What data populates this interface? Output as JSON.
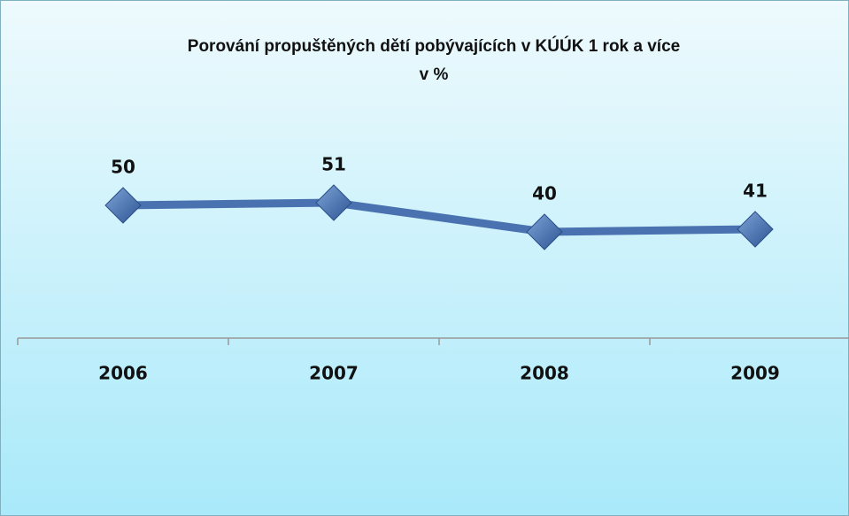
{
  "chart_data": {
    "type": "line",
    "title": [
      "Porování propuštěných dětí pobývajících v KÚÚK 1 rok a více",
      "v %"
    ],
    "categories": [
      "2006",
      "2007",
      "2008",
      "2009"
    ],
    "series": [
      {
        "name": "v %",
        "color": "#4a72b0",
        "values": [
          50,
          51,
          40,
          41
        ]
      }
    ],
    "ylim": [
      0,
      100
    ]
  }
}
